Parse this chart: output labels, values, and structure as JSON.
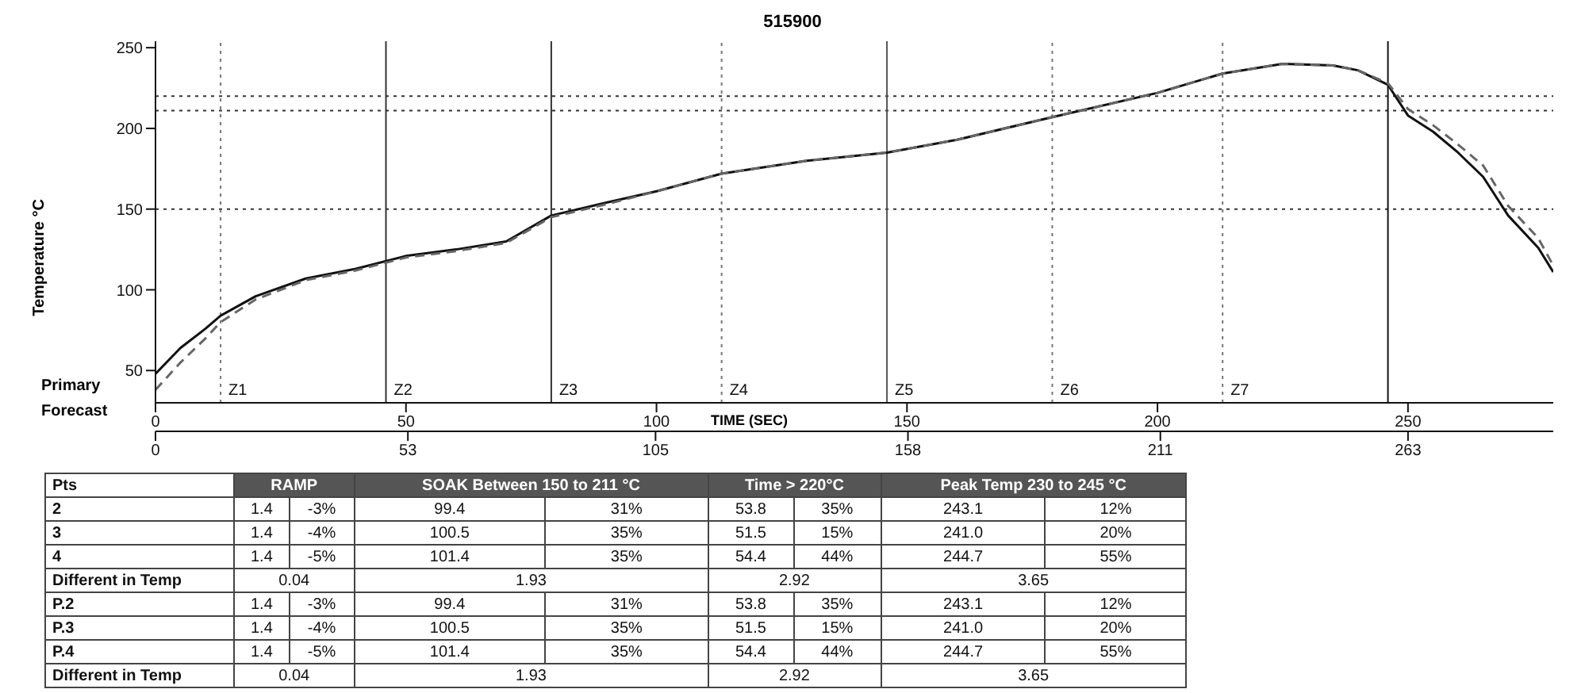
{
  "chart_data": [
    {
      "type": "line",
      "title": "515900",
      "xlabel": "TIME (SEC)",
      "ylabel": "Temperature °C",
      "annotations": [
        "Primary",
        "Forecast"
      ],
      "xlim": [
        0,
        279
      ],
      "xticks": [
        0,
        50,
        100,
        150,
        200,
        250
      ],
      "x2lim": [
        0,
        293.5
      ],
      "x2ticks": [
        0,
        53,
        105,
        158,
        211,
        263
      ],
      "ylim": [
        30,
        254
      ],
      "yticks": [
        50,
        100,
        150,
        200,
        250
      ],
      "marker": "none",
      "series": [
        {
          "color": "#111111",
          "line_style": "solid",
          "x": [
            0,
            5,
            10,
            13,
            20,
            30,
            40,
            50,
            60,
            70,
            79,
            90,
            100,
            113,
            130,
            146,
            160,
            179,
            200,
            213,
            225,
            235,
            240,
            246,
            250,
            255,
            260,
            265,
            270,
            276,
            279
          ],
          "values": [
            48,
            64,
            76,
            84,
            96,
            107,
            113,
            121,
            125,
            130,
            146,
            154,
            161,
            172,
            180,
            185,
            193,
            207,
            222,
            234,
            240,
            239,
            236,
            227,
            208,
            198,
            185,
            170,
            146,
            126,
            111
          ]
        },
        {
          "color": "#666666",
          "line_style": "dashed",
          "x": [
            0,
            5,
            10,
            13,
            20,
            30,
            40,
            50,
            60,
            70,
            79,
            90,
            100,
            113,
            130,
            146,
            160,
            179,
            200,
            213,
            225,
            235,
            240,
            246,
            250,
            255,
            260,
            265,
            270,
            276,
            279
          ],
          "values": [
            38,
            55,
            70,
            80,
            94,
            106,
            112,
            120,
            124,
            129,
            145,
            153,
            161,
            172,
            180,
            185,
            193,
            207,
            222,
            234,
            240,
            239,
            236,
            228,
            212,
            202,
            190,
            177,
            152,
            132,
            115
          ]
        }
      ],
      "ref_lines": [
        {
          "axis": "y",
          "value": 220,
          "line_style": "dotted",
          "color": "#333333"
        },
        {
          "axis": "y",
          "value": 211,
          "line_style": "dotted",
          "color": "#333333"
        },
        {
          "axis": "y",
          "value": 150,
          "line_style": "dotted",
          "color": "#333333"
        },
        {
          "axis": "x",
          "value": 13,
          "label": "Z1",
          "line_style": "dotted",
          "color": "#777777"
        },
        {
          "axis": "x",
          "value": 46,
          "label": "Z2",
          "line_style": "solid",
          "color": "#333333"
        },
        {
          "axis": "x",
          "value": 79,
          "label": "Z3",
          "line_style": "solid",
          "color": "#333333"
        },
        {
          "axis": "x",
          "value": 113,
          "label": "Z4",
          "line_style": "dotted",
          "color": "#777777"
        },
        {
          "axis": "x",
          "value": 146,
          "label": "Z5",
          "line_style": "solid",
          "color": "#555555"
        },
        {
          "axis": "x",
          "value": 179,
          "label": "Z6",
          "line_style": "dotted",
          "color": "#777777"
        },
        {
          "axis": "x",
          "value": 213,
          "label": "Z7",
          "line_style": "dotted",
          "color": "#777777"
        },
        {
          "axis": "x",
          "value": 246,
          "line_style": "solid",
          "color": "#111111"
        }
      ]
    },
    {
      "type": "other",
      "annotations": [
        "Pts",
        "RAMP",
        "SOAK Between 150 to 211 °C",
        "Time > 220°C",
        "Peak Temp 230 to 245 °C",
        "2",
        "1.4",
        "-3%",
        "99.4",
        "31%",
        "53.8",
        "35%",
        "243.1",
        "12%",
        "3",
        "1.4",
        "-4%",
        "100.5",
        "35%",
        "51.5",
        "15%",
        "241.0",
        "20%",
        "4",
        "1.4",
        "-5%",
        "101.4",
        "35%",
        "54.4",
        "44%",
        "244.7",
        "55%",
        "Different in Temp",
        "0.04",
        "1.93",
        "2.92",
        "3.65",
        "P.2",
        "1.4",
        "-3%",
        "99.4",
        "31%",
        "53.8",
        "35%",
        "243.1",
        "12%",
        "P.3",
        "1.4",
        "-4%",
        "100.5",
        "35%",
        "51.5",
        "15%",
        "241.0",
        "20%",
        "P.4",
        "1.4",
        "-5%",
        "101.4",
        "35%",
        "54.4",
        "44%",
        "244.7",
        "55%",
        "Different in Temp",
        "0.04",
        "1.93",
        "2.92",
        "3.65"
      ]
    }
  ]
}
